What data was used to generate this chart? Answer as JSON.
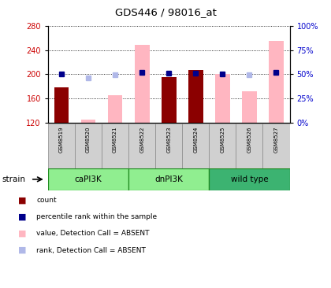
{
  "title": "GDS446 / 98016_at",
  "samples": [
    "GSM8519",
    "GSM8520",
    "GSM8521",
    "GSM8522",
    "GSM8523",
    "GSM8524",
    "GSM8525",
    "GSM8526",
    "GSM8527"
  ],
  "count_values": [
    178,
    null,
    null,
    null,
    195,
    207,
    null,
    null,
    null
  ],
  "rank_values": [
    50,
    46,
    49,
    52,
    51,
    51,
    50,
    49,
    52
  ],
  "rank_absent": [
    false,
    true,
    true,
    false,
    false,
    false,
    false,
    true,
    false
  ],
  "absent_value": [
    null,
    125,
    165,
    248,
    null,
    null,
    200,
    172,
    255
  ],
  "group_names": [
    "caPI3K",
    "dnPI3K",
    "wild type"
  ],
  "group_colors": [
    "#90ee90",
    "#90ee90",
    "#3cb371"
  ],
  "group_starts": [
    0,
    3,
    6
  ],
  "group_ends": [
    3,
    6,
    9
  ],
  "ylim_left": [
    120,
    280
  ],
  "ylim_right": [
    0,
    100
  ],
  "yticks_left": [
    120,
    160,
    200,
    240,
    280
  ],
  "yticks_right": [
    0,
    25,
    50,
    75,
    100
  ],
  "yticklabels_right": [
    "0%",
    "25%",
    "50%",
    "75%",
    "100%"
  ],
  "color_count": "#8b0000",
  "color_rank_present": "#00008b",
  "color_absent_value": "#ffb6c1",
  "color_absent_rank": "#b0b8e8",
  "color_label_left": "#cc0000",
  "color_label_right": "#0000cc",
  "bar_width": 0.55,
  "marker_size": 5,
  "group_border_color": "#228b22",
  "legend_items": [
    [
      "#8b0000",
      "count"
    ],
    [
      "#00008b",
      "percentile rank within the sample"
    ],
    [
      "#ffb6c1",
      "value, Detection Call = ABSENT"
    ],
    [
      "#b0b8e8",
      "rank, Detection Call = ABSENT"
    ]
  ]
}
